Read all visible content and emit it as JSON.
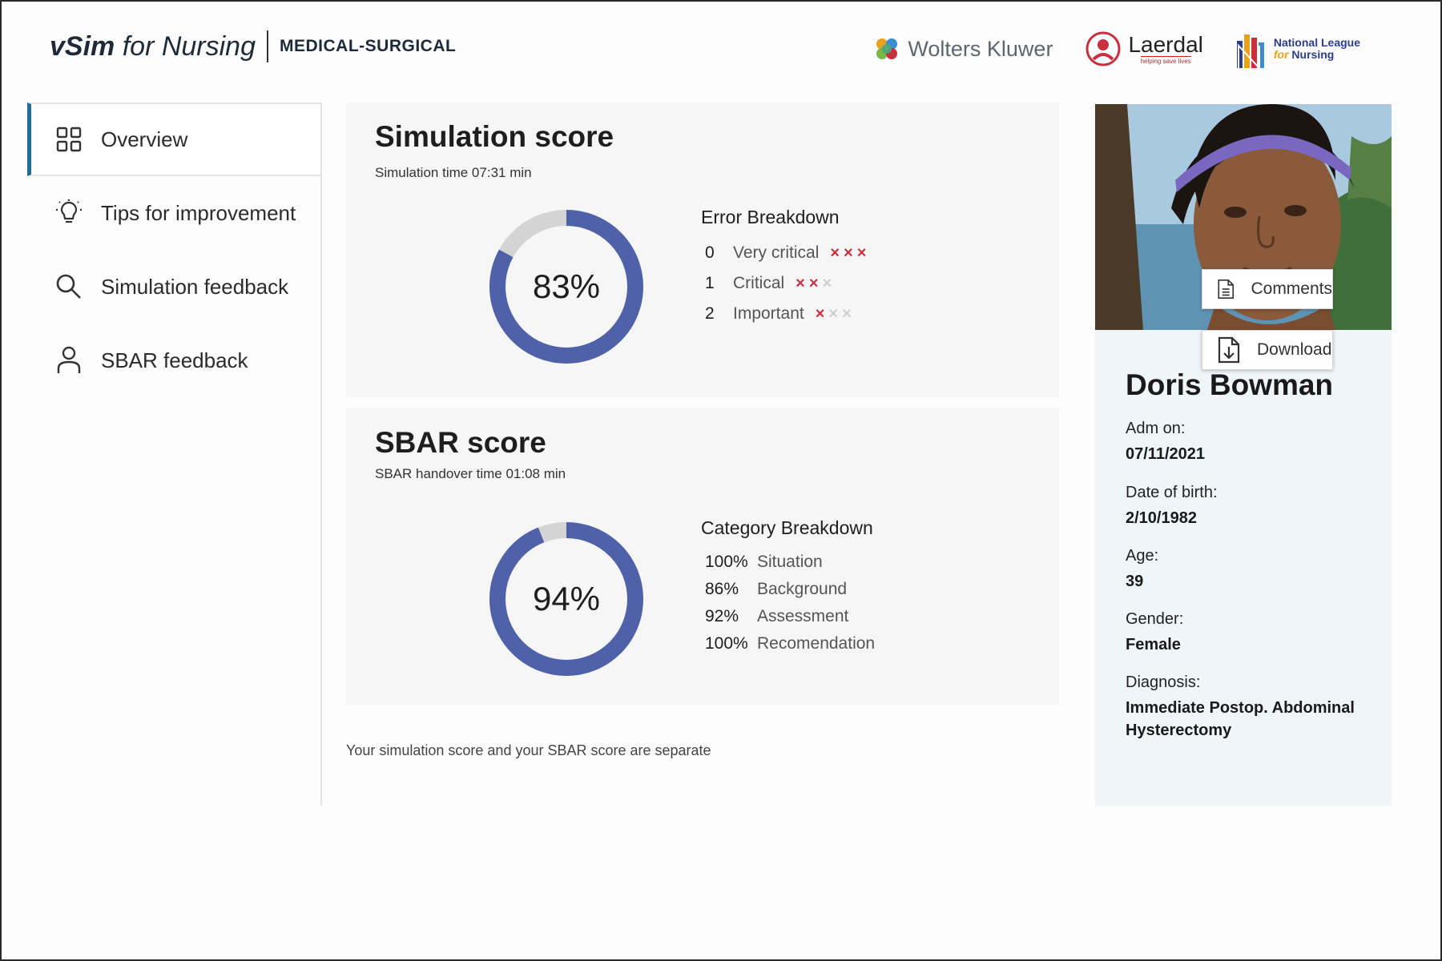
{
  "header": {
    "brand_vsim": "vSim",
    "brand_for": " for Nursing",
    "brand_product": "MEDICAL-SURGICAL",
    "partners": {
      "wolters_kluwer": "Wolters Kluwer",
      "laerdal": "Laerdal",
      "laerdal_tagline": "helping save lives",
      "nln_line1": "National League",
      "nln_line2_for": "for",
      "nln_line2": " Nursing"
    }
  },
  "sidebar": {
    "items": [
      {
        "label": "Overview",
        "icon": "grid-icon",
        "active": true
      },
      {
        "label": "Tips for improvement",
        "icon": "lightbulb-icon",
        "active": false
      },
      {
        "label": "Simulation feedback",
        "icon": "search-icon",
        "active": false
      },
      {
        "label": "SBAR feedback",
        "icon": "person-icon",
        "active": false
      }
    ]
  },
  "simulation": {
    "title": "Simulation score",
    "subtitle": "Simulation time 07:31 min",
    "score": 83,
    "score_label": "83%",
    "breakdown_title": "Error Breakdown",
    "errors": [
      {
        "count": "0",
        "label": "Very critical",
        "marks_on": 3,
        "marks_total": 3
      },
      {
        "count": "1",
        "label": "Critical",
        "marks_on": 2,
        "marks_total": 3
      },
      {
        "count": "2",
        "label": "Important",
        "marks_on": 1,
        "marks_total": 3
      }
    ]
  },
  "sbar": {
    "title": "SBAR score",
    "subtitle": "SBAR handover time 01:08 min",
    "score": 94,
    "score_label": "94%",
    "breakdown_title": "Category Breakdown",
    "categories": [
      {
        "pct": "100%",
        "label": "Situation"
      },
      {
        "pct": "86%",
        "label": "Background"
      },
      {
        "pct": "92%",
        "label": "Assessment"
      },
      {
        "pct": "100%",
        "label": "Recomendation"
      }
    ]
  },
  "footnote": "Your simulation score and your SBAR score are separate",
  "patient": {
    "name": "Doris Bowman",
    "comments_label": "Comments",
    "download_label": "Download",
    "fields": [
      {
        "label": "Adm on:",
        "value": "07/11/2021"
      },
      {
        "label": "Date of birth:",
        "value": "2/10/1982"
      },
      {
        "label": "Age:",
        "value": "39"
      },
      {
        "label": "Gender:",
        "value": "Female"
      },
      {
        "label": "Diagnosis:",
        "value": "Immediate Postop. Abdominal Hysterectomy"
      }
    ]
  },
  "colors": {
    "donut_fill": "#4f61a8",
    "donut_track": "#d4d4d4",
    "accent": "#1f6f9a",
    "error_mark": "#c8303e"
  }
}
